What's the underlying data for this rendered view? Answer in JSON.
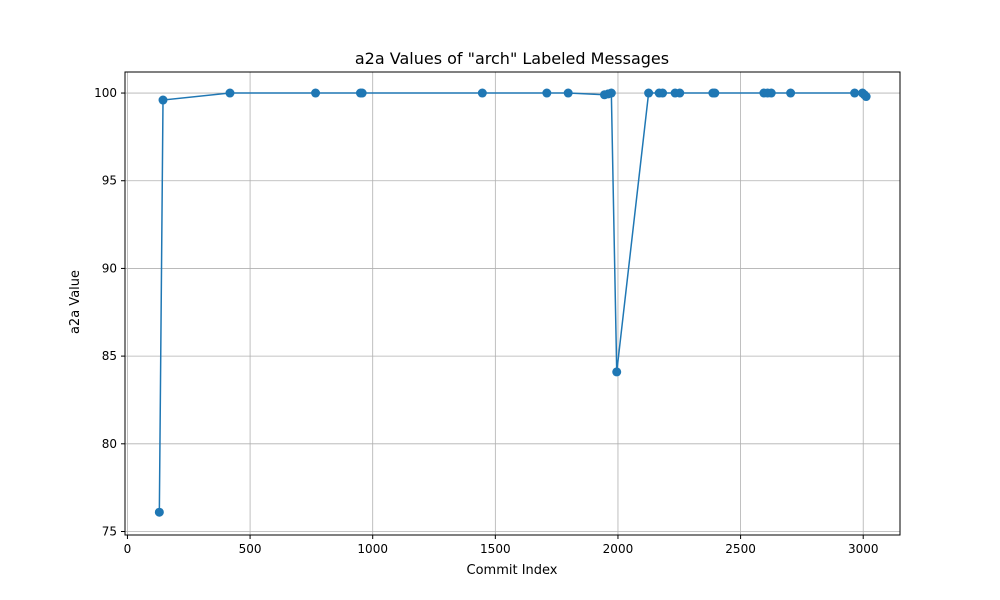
{
  "chart_data": {
    "type": "line",
    "title": "a2a Values of \"arch\" Labeled Messages",
    "xlabel": "Commit Index",
    "ylabel": "a2a Value",
    "xlim": [
      -10,
      3150
    ],
    "ylim": [
      74.8,
      101.2
    ],
    "xticks": [
      0,
      500,
      1000,
      1500,
      2000,
      2500,
      3000
    ],
    "yticks": [
      75,
      80,
      85,
      90,
      95,
      100
    ],
    "grid": true,
    "colors": {
      "series": "#1f77b4",
      "grid": "#b0b0b0",
      "axis": "#000000"
    },
    "series": [
      {
        "marker": "circle",
        "points": [
          {
            "x": 130,
            "y": 76.1
          },
          {
            "x": 145,
            "y": 99.6
          },
          {
            "x": 418,
            "y": 100.0
          },
          {
            "x": 767,
            "y": 100.0
          },
          {
            "x": 950,
            "y": 100.0
          },
          {
            "x": 957,
            "y": 100.0
          },
          {
            "x": 1447,
            "y": 100.0
          },
          {
            "x": 1710,
            "y": 100.0
          },
          {
            "x": 1797,
            "y": 100.0
          },
          {
            "x": 1945,
            "y": 99.9
          },
          {
            "x": 1960,
            "y": 99.95
          },
          {
            "x": 1973,
            "y": 100.0
          },
          {
            "x": 1995,
            "y": 84.1
          },
          {
            "x": 2125,
            "y": 100.0
          },
          {
            "x": 2168,
            "y": 100.0
          },
          {
            "x": 2182,
            "y": 100.0
          },
          {
            "x": 2233,
            "y": 100.0
          },
          {
            "x": 2252,
            "y": 100.0
          },
          {
            "x": 2387,
            "y": 100.0
          },
          {
            "x": 2395,
            "y": 100.0
          },
          {
            "x": 2595,
            "y": 100.0
          },
          {
            "x": 2610,
            "y": 100.0
          },
          {
            "x": 2625,
            "y": 100.0
          },
          {
            "x": 2704,
            "y": 100.0
          },
          {
            "x": 2965,
            "y": 100.0
          },
          {
            "x": 2997,
            "y": 100.0
          },
          {
            "x": 3005,
            "y": 99.9
          },
          {
            "x": 3012,
            "y": 99.8
          }
        ]
      }
    ]
  }
}
